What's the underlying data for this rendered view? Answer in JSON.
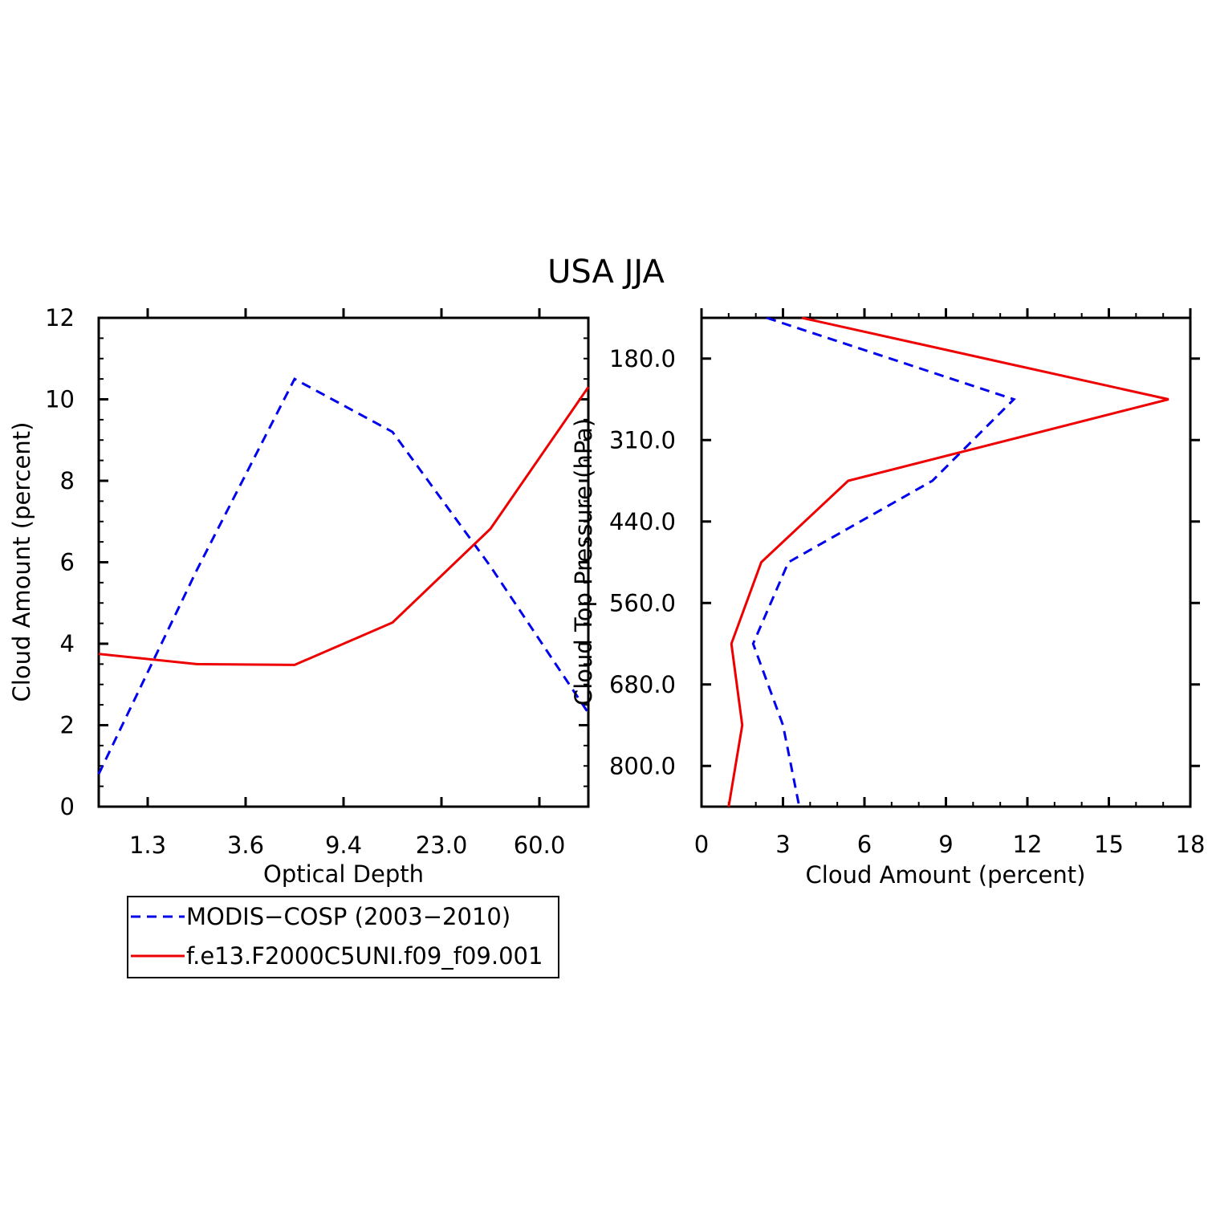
{
  "title": "USA JJA",
  "chart_data": [
    {
      "type": "line",
      "xlabel": "Optical Depth",
      "ylabel": "Cloud Amount (percent)",
      "x_tick_labels": [
        "1.3",
        "3.6",
        "9.4",
        "23.0",
        "60.0"
      ],
      "y_ticks": [
        0,
        2,
        4,
        6,
        8,
        10,
        12
      ],
      "ylim": [
        0,
        12
      ],
      "grid": false,
      "series": [
        {
          "name": "MODIS-COSP (2003-2010)",
          "color": "#0000ee",
          "dash": "dashed",
          "values": [
            0.8,
            5.8,
            10.5,
            9.2,
            5.9,
            2.3
          ]
        },
        {
          "name": "f.e13.F2000C5UNI.f09_f09.001",
          "color": "#ee0000",
          "dash": "solid",
          "values": [
            3.75,
            3.5,
            3.48,
            4.52,
            6.82,
            10.3
          ]
        }
      ]
    },
    {
      "type": "line",
      "xlabel": "Cloud Amount (percent)",
      "ylabel": "Cloud Top Pressure (hPa)",
      "x_ticks": [
        0,
        3,
        6,
        9,
        12,
        15,
        18
      ],
      "xlim": [
        0,
        18
      ],
      "y_tick_labels": [
        "180.0",
        "310.0",
        "440.0",
        "560.0",
        "680.0",
        "800.0"
      ],
      "grid": false,
      "series": [
        {
          "name": "MODIS-COSP (2003-2010)",
          "color": "#0000ee",
          "dash": "dashed",
          "values": [
            2.4,
            11.5,
            8.5,
            3.2,
            1.9,
            3.0,
            3.6
          ]
        },
        {
          "name": "f.e13.F2000C5UNI.f09_f09.001",
          "color": "#ee0000",
          "dash": "solid",
          "values": [
            3.7,
            17.2,
            5.4,
            2.2,
            1.1,
            1.5,
            1.0
          ]
        }
      ]
    }
  ],
  "legend": {
    "items": [
      {
        "label": "MODIS−COSP (2003−2010)",
        "color": "#0000ee",
        "dash": "dashed"
      },
      {
        "label": "f.e13.F2000C5UNI.f09_f09.001",
        "color": "#ee0000",
        "dash": "solid"
      }
    ]
  }
}
